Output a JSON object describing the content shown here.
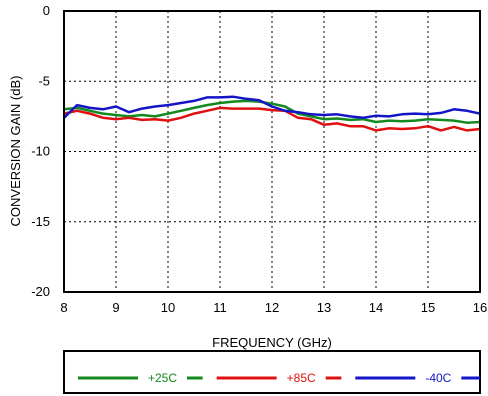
{
  "chart_data": {
    "type": "line",
    "title": "",
    "xlabel": "FREQUENCY (GHz)",
    "ylabel": "CONVERSION GAIN (dB)",
    "xlim": [
      8,
      16
    ],
    "ylim": [
      -20,
      0
    ],
    "xticks": [
      8,
      9,
      10,
      11,
      12,
      13,
      14,
      15,
      16
    ],
    "yticks": [
      0,
      -5,
      -10,
      -15,
      -20
    ],
    "grid": true,
    "legend_position": "bottom",
    "series": [
      {
        "name": "+25C",
        "color": "#138a1e",
        "x": [
          8.0,
          8.25,
          8.5,
          8.75,
          9.0,
          9.25,
          9.5,
          9.75,
          10.0,
          10.25,
          10.5,
          10.75,
          11.0,
          11.25,
          11.5,
          11.75,
          12.0,
          12.25,
          12.5,
          12.75,
          13.0,
          13.25,
          13.5,
          13.75,
          14.0,
          14.25,
          14.5,
          14.75,
          15.0,
          15.25,
          15.5,
          15.75,
          16.0
        ],
        "y": [
          -7.0,
          -6.9,
          -7.1,
          -7.3,
          -7.4,
          -7.5,
          -7.4,
          -7.5,
          -7.3,
          -7.1,
          -6.9,
          -6.7,
          -6.55,
          -6.45,
          -6.4,
          -6.45,
          -6.6,
          -6.8,
          -7.3,
          -7.5,
          -7.7,
          -7.65,
          -7.75,
          -7.7,
          -7.9,
          -7.8,
          -7.85,
          -7.8,
          -7.7,
          -7.75,
          -7.8,
          -7.95,
          -7.9
        ]
      },
      {
        "name": "+85C",
        "color": "#e01010",
        "x": [
          8.0,
          8.25,
          8.5,
          8.75,
          9.0,
          9.25,
          9.5,
          9.75,
          10.0,
          10.25,
          10.5,
          10.75,
          11.0,
          11.25,
          11.5,
          11.75,
          12.0,
          12.25,
          12.5,
          12.75,
          13.0,
          13.25,
          13.5,
          13.75,
          14.0,
          14.25,
          14.5,
          14.75,
          15.0,
          15.25,
          15.5,
          15.75,
          16.0
        ],
        "y": [
          -7.3,
          -7.1,
          -7.3,
          -7.6,
          -7.7,
          -7.6,
          -7.75,
          -7.7,
          -7.8,
          -7.6,
          -7.3,
          -7.1,
          -6.9,
          -6.95,
          -6.95,
          -6.95,
          -7.05,
          -7.1,
          -7.6,
          -7.7,
          -8.1,
          -8.0,
          -8.2,
          -8.2,
          -8.5,
          -8.35,
          -8.4,
          -8.35,
          -8.2,
          -8.5,
          -8.25,
          -8.5,
          -8.4
        ]
      },
      {
        "name": "-40C",
        "color": "#1515c8",
        "x": [
          8.0,
          8.25,
          8.5,
          8.75,
          9.0,
          9.25,
          9.5,
          9.75,
          10.0,
          10.25,
          10.5,
          10.75,
          11.0,
          11.25,
          11.5,
          11.75,
          12.0,
          12.25,
          12.5,
          12.75,
          13.0,
          13.25,
          13.5,
          13.75,
          14.0,
          14.25,
          14.5,
          14.75,
          15.0,
          15.25,
          15.5,
          15.75,
          16.0
        ],
        "y": [
          -7.6,
          -6.7,
          -6.9,
          -7.0,
          -6.8,
          -7.2,
          -6.95,
          -6.8,
          -6.7,
          -6.55,
          -6.4,
          -6.15,
          -6.15,
          -6.1,
          -6.25,
          -6.35,
          -6.8,
          -7.1,
          -7.2,
          -7.35,
          -7.4,
          -7.35,
          -7.5,
          -7.6,
          -7.45,
          -7.5,
          -7.35,
          -7.3,
          -7.35,
          -7.25,
          -7.0,
          -7.1,
          -7.3
        ]
      }
    ]
  }
}
